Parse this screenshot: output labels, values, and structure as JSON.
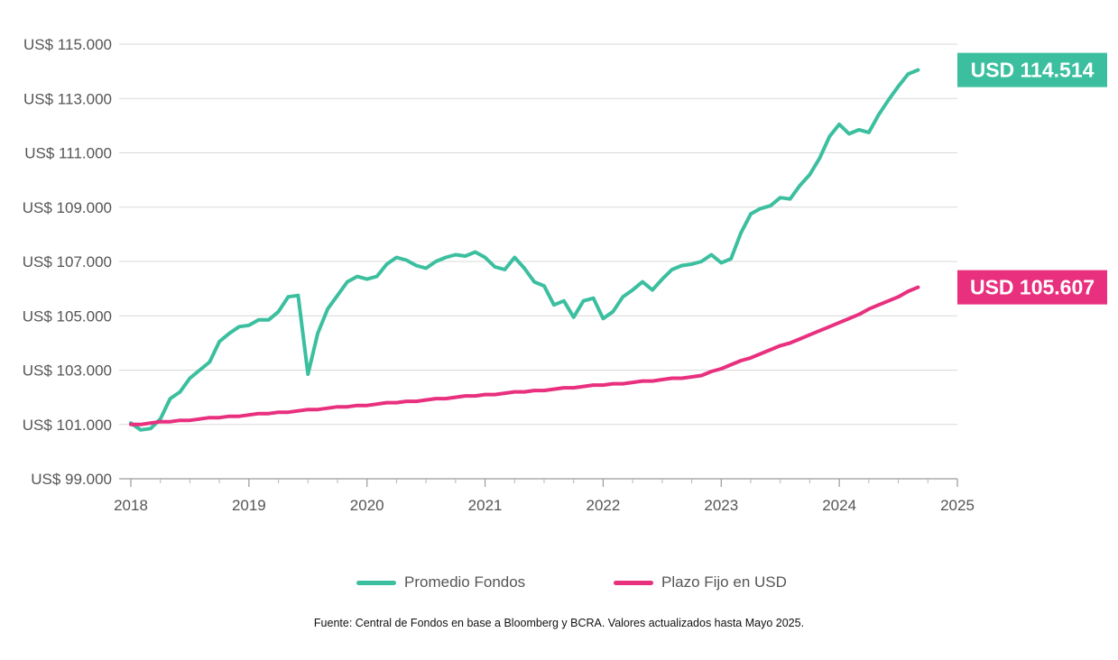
{
  "chart_data": {
    "type": "line",
    "title": "",
    "xlabel": "",
    "ylabel": "",
    "ylim": [
      99000,
      115000
    ],
    "xlim": [
      2018,
      2025
    ],
    "y_ticks": [
      99000,
      101000,
      103000,
      105000,
      107000,
      109000,
      111000,
      113000,
      115000
    ],
    "y_tick_labels": [
      "US$ 99.000",
      "US$ 101.000",
      "US$ 103.000",
      "US$ 105.000",
      "US$ 107.000",
      "US$ 109.000",
      "US$ 111.000",
      "US$ 113.000",
      "US$ 115.000"
    ],
    "x_ticks": [
      2018,
      2019,
      2020,
      2021,
      2022,
      2023,
      2024,
      2025
    ],
    "x_tick_labels": [
      "2018",
      "2019",
      "2020",
      "2021",
      "2022",
      "2023",
      "2024",
      "2025"
    ],
    "grid": true,
    "legend_position": "bottom",
    "series": [
      {
        "name": "Promedio Fondos",
        "color": "#3bbf9f",
        "end_label": "USD 114.514",
        "points": [
          [
            2018.0,
            101050
          ],
          [
            2018.083,
            100800
          ],
          [
            2018.167,
            100850
          ],
          [
            2018.25,
            101200
          ],
          [
            2018.333,
            101950
          ],
          [
            2018.417,
            102200
          ],
          [
            2018.5,
            102700
          ],
          [
            2018.583,
            103000
          ],
          [
            2018.667,
            103300
          ],
          [
            2018.75,
            104050
          ],
          [
            2018.833,
            104350
          ],
          [
            2018.917,
            104600
          ],
          [
            2019.0,
            104650
          ],
          [
            2019.083,
            104850
          ],
          [
            2019.167,
            104850
          ],
          [
            2019.25,
            105150
          ],
          [
            2019.333,
            105700
          ],
          [
            2019.417,
            105750
          ],
          [
            2019.5,
            102850
          ],
          [
            2019.583,
            104350
          ],
          [
            2019.667,
            105250
          ],
          [
            2019.75,
            105750
          ],
          [
            2019.833,
            106250
          ],
          [
            2019.917,
            106450
          ],
          [
            2020.0,
            106350
          ],
          [
            2020.083,
            106450
          ],
          [
            2020.167,
            106900
          ],
          [
            2020.25,
            107150
          ],
          [
            2020.333,
            107050
          ],
          [
            2020.417,
            106850
          ],
          [
            2020.5,
            106750
          ],
          [
            2020.583,
            107000
          ],
          [
            2020.667,
            107150
          ],
          [
            2020.75,
            107250
          ],
          [
            2020.833,
            107200
          ],
          [
            2020.917,
            107350
          ],
          [
            2021.0,
            107150
          ],
          [
            2021.083,
            106800
          ],
          [
            2021.167,
            106700
          ],
          [
            2021.25,
            107150
          ],
          [
            2021.333,
            106750
          ],
          [
            2021.417,
            106250
          ],
          [
            2021.5,
            106100
          ],
          [
            2021.583,
            105400
          ],
          [
            2021.667,
            105550
          ],
          [
            2021.75,
            104950
          ],
          [
            2021.833,
            105550
          ],
          [
            2021.917,
            105650
          ],
          [
            2022.0,
            104900
          ],
          [
            2022.083,
            105150
          ],
          [
            2022.167,
            105700
          ],
          [
            2022.25,
            105950
          ],
          [
            2022.333,
            106250
          ],
          [
            2022.417,
            105950
          ],
          [
            2022.5,
            106350
          ],
          [
            2022.583,
            106700
          ],
          [
            2022.667,
            106850
          ],
          [
            2022.75,
            106900
          ],
          [
            2022.833,
            107000
          ],
          [
            2022.917,
            107250
          ],
          [
            2023.0,
            106950
          ],
          [
            2023.083,
            107100
          ],
          [
            2023.167,
            108050
          ],
          [
            2023.25,
            108750
          ],
          [
            2023.333,
            108950
          ],
          [
            2023.417,
            109050
          ],
          [
            2023.5,
            109350
          ],
          [
            2023.583,
            109300
          ],
          [
            2023.667,
            109800
          ],
          [
            2023.75,
            110200
          ],
          [
            2023.833,
            110800
          ],
          [
            2023.917,
            111600
          ],
          [
            2024.0,
            112050
          ],
          [
            2024.083,
            111700
          ],
          [
            2024.167,
            111850
          ],
          [
            2024.25,
            111750
          ],
          [
            2024.333,
            112400
          ],
          [
            2024.417,
            112950
          ],
          [
            2024.5,
            113450
          ],
          [
            2024.583,
            113900
          ],
          [
            2024.667,
            114050
          ]
        ]
      },
      {
        "name": "Plazo Fijo en USD",
        "color": "#e8307f",
        "end_label": "USD 105.607",
        "points": [
          [
            2018.0,
            101000
          ],
          [
            2018.083,
            101000
          ],
          [
            2018.167,
            101050
          ],
          [
            2018.25,
            101100
          ],
          [
            2018.333,
            101100
          ],
          [
            2018.417,
            101150
          ],
          [
            2018.5,
            101150
          ],
          [
            2018.583,
            101200
          ],
          [
            2018.667,
            101250
          ],
          [
            2018.75,
            101250
          ],
          [
            2018.833,
            101300
          ],
          [
            2018.917,
            101300
          ],
          [
            2019.0,
            101350
          ],
          [
            2019.083,
            101400
          ],
          [
            2019.167,
            101400
          ],
          [
            2019.25,
            101450
          ],
          [
            2019.333,
            101450
          ],
          [
            2019.417,
            101500
          ],
          [
            2019.5,
            101550
          ],
          [
            2019.583,
            101550
          ],
          [
            2019.667,
            101600
          ],
          [
            2019.75,
            101650
          ],
          [
            2019.833,
            101650
          ],
          [
            2019.917,
            101700
          ],
          [
            2020.0,
            101700
          ],
          [
            2020.083,
            101750
          ],
          [
            2020.167,
            101800
          ],
          [
            2020.25,
            101800
          ],
          [
            2020.333,
            101850
          ],
          [
            2020.417,
            101850
          ],
          [
            2020.5,
            101900
          ],
          [
            2020.583,
            101950
          ],
          [
            2020.667,
            101950
          ],
          [
            2020.75,
            102000
          ],
          [
            2020.833,
            102050
          ],
          [
            2020.917,
            102050
          ],
          [
            2021.0,
            102100
          ],
          [
            2021.083,
            102100
          ],
          [
            2021.167,
            102150
          ],
          [
            2021.25,
            102200
          ],
          [
            2021.333,
            102200
          ],
          [
            2021.417,
            102250
          ],
          [
            2021.5,
            102250
          ],
          [
            2021.583,
            102300
          ],
          [
            2021.667,
            102350
          ],
          [
            2021.75,
            102350
          ],
          [
            2021.833,
            102400
          ],
          [
            2021.917,
            102450
          ],
          [
            2022.0,
            102450
          ],
          [
            2022.083,
            102500
          ],
          [
            2022.167,
            102500
          ],
          [
            2022.25,
            102550
          ],
          [
            2022.333,
            102600
          ],
          [
            2022.417,
            102600
          ],
          [
            2022.5,
            102650
          ],
          [
            2022.583,
            102700
          ],
          [
            2022.667,
            102700
          ],
          [
            2022.75,
            102750
          ],
          [
            2022.833,
            102800
          ],
          [
            2022.917,
            102950
          ],
          [
            2023.0,
            103050
          ],
          [
            2023.083,
            103200
          ],
          [
            2023.167,
            103350
          ],
          [
            2023.25,
            103450
          ],
          [
            2023.333,
            103600
          ],
          [
            2023.417,
            103750
          ],
          [
            2023.5,
            103900
          ],
          [
            2023.583,
            104000
          ],
          [
            2023.667,
            104150
          ],
          [
            2023.75,
            104300
          ],
          [
            2023.833,
            104450
          ],
          [
            2023.917,
            104600
          ],
          [
            2024.0,
            104750
          ],
          [
            2024.083,
            104900
          ],
          [
            2024.167,
            105050
          ],
          [
            2024.25,
            105250
          ],
          [
            2024.333,
            105400
          ],
          [
            2024.417,
            105550
          ],
          [
            2024.5,
            105700
          ],
          [
            2024.583,
            105900
          ],
          [
            2024.667,
            106050
          ]
        ]
      }
    ],
    "source_note": "Fuente: Central de Fondos en base a Bloomberg y BCRA. Valores actualizados hasta Mayo 2025."
  }
}
